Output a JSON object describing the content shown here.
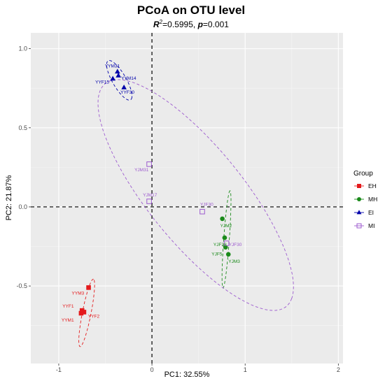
{
  "chart_data": {
    "type": "scatter",
    "title": "PCoA on OTU level",
    "subtitle": {
      "r2_value": "=0.5995, ",
      "p_value": "=0.001",
      "r_symbol": "R",
      "sup": "2",
      "p_symbol": "p"
    },
    "xlabel": "PC1: 32.55%",
    "ylabel": "PC2: 21.87%",
    "xlim": [
      -1.3,
      2.05
    ],
    "ylim": [
      -0.99,
      1.1
    ],
    "xticks": [
      -1,
      0,
      1,
      2
    ],
    "yticks": [
      -0.5,
      0,
      0.5,
      1.0
    ],
    "xtick_labels": [
      "-1",
      "0",
      "1",
      "2"
    ],
    "ytick_labels": [
      "-0.5",
      "0.0",
      "0.5",
      "1.0"
    ],
    "grid": true,
    "reference_lines": {
      "x": 0,
      "y": 0
    },
    "legend": {
      "title": "Group",
      "placement": "right"
    },
    "series": [
      {
        "name": "EH",
        "color": "#e41a1c",
        "marker": "square-filled",
        "points": [
          {
            "x": -0.68,
            "y": -0.51,
            "label": "YYM3"
          },
          {
            "x": -0.75,
            "y": -0.655,
            "label": "YYF1"
          },
          {
            "x": -0.73,
            "y": -0.665,
            "label": "YYF2"
          },
          {
            "x": -0.76,
            "y": -0.672,
            "label": "YYM1"
          }
        ],
        "ellipse": {
          "cx": -0.7,
          "cy": -0.67,
          "rx": 0.225,
          "ry": 0.045,
          "angle_deg": 71
        }
      },
      {
        "name": "MH",
        "color": "#1a8a1a",
        "marker": "circle-filled",
        "points": [
          {
            "x": 0.755,
            "y": -0.075,
            "label": "YJM2"
          },
          {
            "x": 0.78,
            "y": -0.195,
            "label": "YJF28"
          },
          {
            "x": 0.79,
            "y": -0.255,
            "label": "YJF5"
          },
          {
            "x": 0.82,
            "y": -0.3,
            "label": "YJM3"
          }
        ],
        "ellipse": {
          "cx": 0.8,
          "cy": -0.205,
          "rx": 0.31,
          "ry": 0.03,
          "angle_deg": 83
        }
      },
      {
        "name": "EI",
        "color": "#0000aa",
        "marker": "triangle-filled",
        "points": [
          {
            "x": -0.37,
            "y": 0.855,
            "label": "YYM31"
          },
          {
            "x": -0.36,
            "y": 0.83,
            "label": "YYM14"
          },
          {
            "x": -0.42,
            "y": 0.81,
            "label": "YYF15"
          },
          {
            "x": -0.3,
            "y": 0.755,
            "label": "YYF30"
          }
        ],
        "ellipse": {
          "cx": -0.35,
          "cy": 0.8,
          "rx": 0.175,
          "ry": 0.06,
          "angle_deg": -42
        }
      },
      {
        "name": "MI",
        "color": "#9d5bcf",
        "marker": "square-open",
        "points": [
          {
            "x": -0.03,
            "y": 0.27,
            "label": "YJM31"
          },
          {
            "x": -0.03,
            "y": 0.035,
            "label": "YJM17"
          },
          {
            "x": 0.54,
            "y": -0.03,
            "label": "YJF30"
          },
          {
            "x": 0.8,
            "y": -0.23,
            "label": "YJF30"
          }
        ],
        "ellipse": {
          "cx": 0.47,
          "cy": 0.075,
          "rx": 1.22,
          "ry": 0.38,
          "angle_deg": -32.5
        }
      }
    ]
  }
}
